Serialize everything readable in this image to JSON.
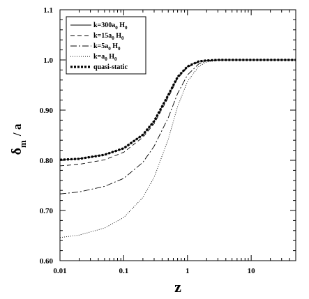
{
  "chart_data": {
    "type": "line",
    "xlabel": "z",
    "ylabel": {
      "main": "δ",
      "sub": "m",
      "suffix": "/ a"
    },
    "xscale": "log",
    "xlim": [
      0.01,
      50
    ],
    "ylim": [
      0.6,
      1.1
    ],
    "x_ticks": [
      0.01,
      0.1,
      1,
      10
    ],
    "x_tick_labels": [
      "0.01",
      "0.1",
      "1",
      "10"
    ],
    "y_ticks": [
      0.6,
      0.7,
      0.8,
      0.9,
      1.0,
      1.1
    ],
    "y_tick_labels": [
      "0.60",
      "0.70",
      "0.80",
      "0.90",
      "1.0",
      "1.1"
    ],
    "grid": false,
    "legend_position": "top-left",
    "x": [
      0.01,
      0.02,
      0.05,
      0.1,
      0.2,
      0.3,
      0.5,
      0.7,
      1.0,
      1.5,
      2.0,
      3.0,
      5.0,
      10.0,
      50.0
    ],
    "series": [
      {
        "name_parts": [
          "k=300a",
          "0",
          " H",
          "0"
        ],
        "style": "solid",
        "values": [
          0.801,
          0.803,
          0.811,
          0.824,
          0.851,
          0.878,
          0.93,
          0.966,
          0.987,
          0.997,
          0.999,
          1.0,
          1.0,
          1.0,
          1.0
        ]
      },
      {
        "name_parts": [
          "k=15a",
          "0",
          " H",
          "0"
        ],
        "style": "dashed",
        "values": [
          0.789,
          0.792,
          0.801,
          0.816,
          0.846,
          0.873,
          0.925,
          0.963,
          0.985,
          0.996,
          0.999,
          1.0,
          1.0,
          1.0,
          1.0
        ]
      },
      {
        "name_parts": [
          "k=5a",
          "0",
          " H",
          "0"
        ],
        "style": "dashdot",
        "values": [
          0.733,
          0.737,
          0.748,
          0.764,
          0.796,
          0.828,
          0.885,
          0.933,
          0.97,
          0.992,
          0.998,
          1.0,
          1.0,
          1.0,
          1.0
        ]
      },
      {
        "name_parts": [
          "k=a",
          "0",
          " H",
          "0"
        ],
        "style": "dotted",
        "values": [
          0.646,
          0.651,
          0.665,
          0.686,
          0.726,
          0.766,
          0.842,
          0.907,
          0.957,
          0.987,
          0.996,
          0.999,
          1.0,
          1.0,
          1.0
        ]
      },
      {
        "name_parts": [
          "quasi-static"
        ],
        "style": "thick-dotted",
        "values": [
          0.801,
          0.803,
          0.811,
          0.824,
          0.851,
          0.878,
          0.93,
          0.966,
          0.987,
          0.997,
          0.999,
          1.0,
          1.0,
          1.0,
          1.0
        ]
      }
    ]
  }
}
